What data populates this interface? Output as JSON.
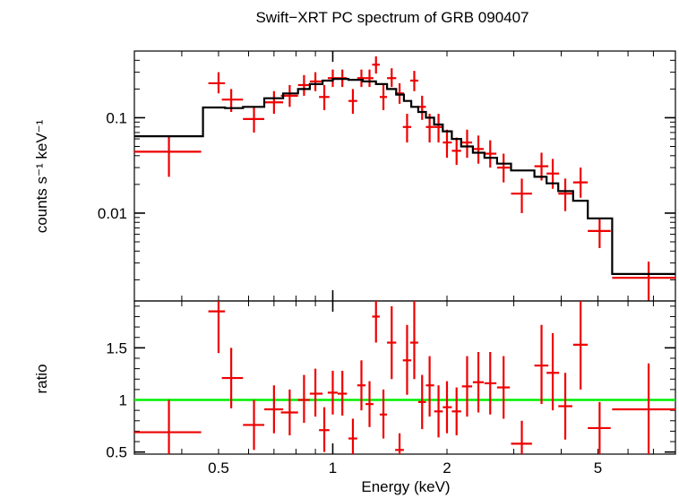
{
  "chart_data": [
    {
      "type": "scatter",
      "title": "Swift−XRT PC spectrum of GRB 090407",
      "ylabel": "counts s⁻¹ keV⁻¹",
      "xlabel": "",
      "xscale": "log",
      "yscale": "log",
      "xlim": [
        0.3,
        8.0
      ],
      "ylim": [
        0.0012,
        0.5
      ],
      "xticks_labeled": [],
      "yticks_labeled": [
        {
          "value": 0.1,
          "label": "0.1"
        },
        {
          "value": 0.01,
          "label": "0.01"
        }
      ],
      "series": [
        {
          "style": "crosses",
          "color": "#ee0000",
          "points": [
            {
              "x": 0.37,
              "xlo": 0.3,
              "xhi": 0.45,
              "y": 0.044,
              "ylo": 0.024,
              "yhi": 0.065
            },
            {
              "x": 0.5,
              "xlo": 0.47,
              "xhi": 0.52,
              "y": 0.23,
              "ylo": 0.18,
              "yhi": 0.3
            },
            {
              "x": 0.54,
              "xlo": 0.51,
              "xhi": 0.58,
              "y": 0.155,
              "ylo": 0.115,
              "yhi": 0.2
            },
            {
              "x": 0.62,
              "xlo": 0.58,
              "xhi": 0.66,
              "y": 0.097,
              "ylo": 0.07,
              "yhi": 0.13
            },
            {
              "x": 0.7,
              "xlo": 0.66,
              "xhi": 0.74,
              "y": 0.145,
              "ylo": 0.11,
              "yhi": 0.19
            },
            {
              "x": 0.77,
              "xlo": 0.73,
              "xhi": 0.81,
              "y": 0.17,
              "ylo": 0.13,
              "yhi": 0.22
            },
            {
              "x": 0.84,
              "xlo": 0.81,
              "xhi": 0.87,
              "y": 0.22,
              "ylo": 0.17,
              "yhi": 0.28
            },
            {
              "x": 0.9,
              "xlo": 0.87,
              "xhi": 0.94,
              "y": 0.24,
              "ylo": 0.19,
              "yhi": 0.3
            },
            {
              "x": 0.95,
              "xlo": 0.92,
              "xhi": 0.98,
              "y": 0.165,
              "ylo": 0.12,
              "yhi": 0.22
            },
            {
              "x": 1.0,
              "xlo": 0.97,
              "xhi": 1.03,
              "y": 0.26,
              "ylo": 0.21,
              "yhi": 0.32
            },
            {
              "x": 1.06,
              "xlo": 1.03,
              "xhi": 1.09,
              "y": 0.26,
              "ylo": 0.21,
              "yhi": 0.32
            },
            {
              "x": 1.13,
              "xlo": 1.1,
              "xhi": 1.16,
              "y": 0.15,
              "ylo": 0.11,
              "yhi": 0.2
            },
            {
              "x": 1.19,
              "xlo": 1.16,
              "xhi": 1.22,
              "y": 0.26,
              "ylo": 0.21,
              "yhi": 0.32
            },
            {
              "x": 1.25,
              "xlo": 1.22,
              "xhi": 1.28,
              "y": 0.26,
              "ylo": 0.21,
              "yhi": 0.32
            },
            {
              "x": 1.3,
              "xlo": 1.27,
              "xhi": 1.33,
              "y": 0.36,
              "ylo": 0.29,
              "yhi": 0.44
            },
            {
              "x": 1.36,
              "xlo": 1.33,
              "xhi": 1.39,
              "y": 0.165,
              "ylo": 0.12,
              "yhi": 0.22
            },
            {
              "x": 1.43,
              "xlo": 1.39,
              "xhi": 1.47,
              "y": 0.26,
              "ylo": 0.21,
              "yhi": 0.33
            },
            {
              "x": 1.5,
              "xlo": 1.46,
              "xhi": 1.54,
              "y": 0.18,
              "ylo": 0.14,
              "yhi": 0.23
            },
            {
              "x": 1.57,
              "xlo": 1.53,
              "xhi": 1.61,
              "y": 0.08,
              "ylo": 0.055,
              "yhi": 0.11
            },
            {
              "x": 1.64,
              "xlo": 1.6,
              "xhi": 1.68,
              "y": 0.245,
              "ylo": 0.19,
              "yhi": 0.31
            },
            {
              "x": 1.72,
              "xlo": 1.68,
              "xhi": 1.76,
              "y": 0.13,
              "ylo": 0.095,
              "yhi": 0.17
            },
            {
              "x": 1.8,
              "xlo": 1.76,
              "xhi": 1.85,
              "y": 0.08,
              "ylo": 0.055,
              "yhi": 0.11
            },
            {
              "x": 1.9,
              "xlo": 1.85,
              "xhi": 1.95,
              "y": 0.08,
              "ylo": 0.055,
              "yhi": 0.11
            },
            {
              "x": 2.0,
              "xlo": 1.95,
              "xhi": 2.06,
              "y": 0.055,
              "ylo": 0.038,
              "yhi": 0.075
            },
            {
              "x": 2.12,
              "xlo": 2.06,
              "xhi": 2.18,
              "y": 0.045,
              "ylo": 0.032,
              "yhi": 0.062
            },
            {
              "x": 2.26,
              "xlo": 2.19,
              "xhi": 2.33,
              "y": 0.055,
              "ylo": 0.038,
              "yhi": 0.075
            },
            {
              "x": 2.42,
              "xlo": 2.34,
              "xhi": 2.5,
              "y": 0.047,
              "ylo": 0.033,
              "yhi": 0.065
            },
            {
              "x": 2.6,
              "xlo": 2.51,
              "xhi": 2.7,
              "y": 0.042,
              "ylo": 0.03,
              "yhi": 0.058
            },
            {
              "x": 2.82,
              "xlo": 2.71,
              "xhi": 2.93,
              "y": 0.03,
              "ylo": 0.021,
              "yhi": 0.042
            },
            {
              "x": 3.15,
              "xlo": 2.95,
              "xhi": 3.35,
              "y": 0.016,
              "ylo": 0.01,
              "yhi": 0.023
            },
            {
              "x": 3.55,
              "xlo": 3.4,
              "xhi": 3.7,
              "y": 0.031,
              "ylo": 0.022,
              "yhi": 0.043
            },
            {
              "x": 3.8,
              "xlo": 3.66,
              "xhi": 3.95,
              "y": 0.026,
              "ylo": 0.018,
              "yhi": 0.037
            },
            {
              "x": 4.1,
              "xlo": 3.93,
              "xhi": 4.28,
              "y": 0.016,
              "ylo": 0.0105,
              "yhi": 0.023
            },
            {
              "x": 4.5,
              "xlo": 4.3,
              "xhi": 4.7,
              "y": 0.021,
              "ylo": 0.0145,
              "yhi": 0.03
            },
            {
              "x": 5.05,
              "xlo": 4.7,
              "xhi": 5.4,
              "y": 0.0065,
              "ylo": 0.0043,
              "yhi": 0.0088
            },
            {
              "x": 6.8,
              "xlo": 5.45,
              "xhi": 8.0,
              "y": 0.0021,
              "ylo": 0.0012,
              "yhi": 0.0031
            }
          ]
        },
        {
          "style": "step",
          "color": "#000000",
          "steps": [
            {
              "x0": 0.3,
              "x1": 0.455,
              "y": 0.064
            },
            {
              "x0": 0.455,
              "x1": 0.52,
              "y": 0.128
            },
            {
              "x0": 0.52,
              "x1": 0.58,
              "y": 0.126
            },
            {
              "x0": 0.58,
              "x1": 0.66,
              "y": 0.13
            },
            {
              "x0": 0.66,
              "x1": 0.74,
              "y": 0.16
            },
            {
              "x0": 0.74,
              "x1": 0.81,
              "y": 0.18
            },
            {
              "x0": 0.81,
              "x1": 0.87,
              "y": 0.2
            },
            {
              "x0": 0.87,
              "x1": 0.94,
              "y": 0.225
            },
            {
              "x0": 0.94,
              "x1": 1.0,
              "y": 0.245
            },
            {
              "x0": 1.0,
              "x1": 1.1,
              "y": 0.255
            },
            {
              "x0": 1.1,
              "x1": 1.2,
              "y": 0.25
            },
            {
              "x0": 1.2,
              "x1": 1.3,
              "y": 0.24
            },
            {
              "x0": 1.3,
              "x1": 1.39,
              "y": 0.225
            },
            {
              "x0": 1.39,
              "x1": 1.47,
              "y": 0.2
            },
            {
              "x0": 1.47,
              "x1": 1.54,
              "y": 0.175
            },
            {
              "x0": 1.54,
              "x1": 1.61,
              "y": 0.15
            },
            {
              "x0": 1.61,
              "x1": 1.68,
              "y": 0.13
            },
            {
              "x0": 1.68,
              "x1": 1.76,
              "y": 0.115
            },
            {
              "x0": 1.76,
              "x1": 1.85,
              "y": 0.1
            },
            {
              "x0": 1.85,
              "x1": 1.95,
              "y": 0.085
            },
            {
              "x0": 1.95,
              "x1": 2.06,
              "y": 0.072
            },
            {
              "x0": 2.06,
              "x1": 2.18,
              "y": 0.06
            },
            {
              "x0": 2.18,
              "x1": 2.34,
              "y": 0.05
            },
            {
              "x0": 2.34,
              "x1": 2.51,
              "y": 0.043
            },
            {
              "x0": 2.51,
              "x1": 2.71,
              "y": 0.038
            },
            {
              "x0": 2.71,
              "x1": 2.95,
              "y": 0.033
            },
            {
              "x0": 2.95,
              "x1": 3.4,
              "y": 0.028
            },
            {
              "x0": 3.4,
              "x1": 3.66,
              "y": 0.024
            },
            {
              "x0": 3.66,
              "x1": 3.93,
              "y": 0.0205
            },
            {
              "x0": 3.93,
              "x1": 4.3,
              "y": 0.017
            },
            {
              "x0": 4.3,
              "x1": 4.7,
              "y": 0.0135
            },
            {
              "x0": 4.7,
              "x1": 5.45,
              "y": 0.0088
            },
            {
              "x0": 5.45,
              "x1": 8.0,
              "y": 0.0023
            }
          ]
        }
      ]
    },
    {
      "type": "scatter",
      "title": "",
      "ylabel": "ratio",
      "xlabel": "Energy (keV)",
      "xscale": "log",
      "yscale": "linear",
      "xlim": [
        0.3,
        8.0
      ],
      "ylim": [
        0.48,
        1.95
      ],
      "xticks_labeled": [
        {
          "value": 0.5,
          "label": "0.5"
        },
        {
          "value": 1,
          "label": "1"
        },
        {
          "value": 2,
          "label": "2"
        },
        {
          "value": 5,
          "label": "5"
        }
      ],
      "yticks_labeled": [
        {
          "value": 0.5,
          "label": "0.5"
        },
        {
          "value": 1,
          "label": "1"
        },
        {
          "value": 1.5,
          "label": "1.5"
        }
      ],
      "reference_line": {
        "y": 1.0,
        "color": "#00ee00"
      },
      "series": [
        {
          "style": "crosses",
          "color": "#ee0000",
          "points": [
            {
              "x": 0.37,
              "xlo": 0.3,
              "xhi": 0.45,
              "y": 0.69,
              "ylo": 0.38,
              "yhi": 1.0
            },
            {
              "x": 0.5,
              "xlo": 0.47,
              "xhi": 0.52,
              "y": 1.85,
              "ylo": 1.45,
              "yhi": 1.95
            },
            {
              "x": 0.54,
              "xlo": 0.51,
              "xhi": 0.58,
              "y": 1.21,
              "ylo": 0.92,
              "yhi": 1.5
            },
            {
              "x": 0.62,
              "xlo": 0.58,
              "xhi": 0.66,
              "y": 0.76,
              "ylo": 0.52,
              "yhi": 1.0
            },
            {
              "x": 0.7,
              "xlo": 0.66,
              "xhi": 0.74,
              "y": 0.91,
              "ylo": 0.68,
              "yhi": 1.14
            },
            {
              "x": 0.77,
              "xlo": 0.73,
              "xhi": 0.81,
              "y": 0.88,
              "ylo": 0.66,
              "yhi": 1.1
            },
            {
              "x": 0.84,
              "xlo": 0.81,
              "xhi": 0.87,
              "y": 1.0,
              "ylo": 0.78,
              "yhi": 1.24
            },
            {
              "x": 0.9,
              "xlo": 0.87,
              "xhi": 0.94,
              "y": 1.06,
              "ylo": 0.84,
              "yhi": 1.3
            },
            {
              "x": 0.95,
              "xlo": 0.92,
              "xhi": 0.98,
              "y": 0.71,
              "ylo": 0.5,
              "yhi": 0.93
            },
            {
              "x": 1.0,
              "xlo": 0.97,
              "xhi": 1.03,
              "y": 1.07,
              "ylo": 0.86,
              "yhi": 1.28
            },
            {
              "x": 1.06,
              "xlo": 1.03,
              "xhi": 1.09,
              "y": 1.06,
              "ylo": 0.85,
              "yhi": 1.28
            },
            {
              "x": 1.13,
              "xlo": 1.1,
              "xhi": 1.16,
              "y": 0.63,
              "ylo": 0.44,
              "yhi": 0.82
            },
            {
              "x": 1.19,
              "xlo": 1.16,
              "xhi": 1.22,
              "y": 1.14,
              "ylo": 0.9,
              "yhi": 1.38
            },
            {
              "x": 1.25,
              "xlo": 1.22,
              "xhi": 1.28,
              "y": 0.96,
              "ylo": 0.74,
              "yhi": 1.18
            },
            {
              "x": 1.3,
              "xlo": 1.27,
              "xhi": 1.33,
              "y": 1.8,
              "ylo": 1.55,
              "yhi": 1.95
            },
            {
              "x": 1.36,
              "xlo": 1.33,
              "xhi": 1.39,
              "y": 0.86,
              "ylo": 0.63,
              "yhi": 1.1
            },
            {
              "x": 1.43,
              "xlo": 1.39,
              "xhi": 1.47,
              "y": 1.55,
              "ylo": 1.2,
              "yhi": 1.9
            },
            {
              "x": 1.5,
              "xlo": 1.46,
              "xhi": 1.54,
              "y": 0.52,
              "ylo": 0.38,
              "yhi": 0.68
            },
            {
              "x": 1.57,
              "xlo": 1.53,
              "xhi": 1.61,
              "y": 1.38,
              "ylo": 1.05,
              "yhi": 1.72
            },
            {
              "x": 1.64,
              "xlo": 1.6,
              "xhi": 1.68,
              "y": 1.55,
              "ylo": 1.2,
              "yhi": 1.95
            },
            {
              "x": 1.72,
              "xlo": 1.68,
              "xhi": 1.76,
              "y": 0.98,
              "ylo": 0.72,
              "yhi": 1.24
            },
            {
              "x": 1.8,
              "xlo": 1.76,
              "xhi": 1.85,
              "y": 1.14,
              "ylo": 0.84,
              "yhi": 1.42
            },
            {
              "x": 1.9,
              "xlo": 1.85,
              "xhi": 1.95,
              "y": 0.89,
              "ylo": 0.64,
              "yhi": 1.14
            },
            {
              "x": 2.0,
              "xlo": 1.95,
              "xhi": 2.06,
              "y": 0.93,
              "ylo": 0.68,
              "yhi": 1.18
            },
            {
              "x": 2.12,
              "xlo": 2.06,
              "xhi": 2.18,
              "y": 0.89,
              "ylo": 0.66,
              "yhi": 1.12
            },
            {
              "x": 2.26,
              "xlo": 2.19,
              "xhi": 2.33,
              "y": 1.13,
              "ylo": 0.84,
              "yhi": 1.42
            },
            {
              "x": 2.42,
              "xlo": 2.34,
              "xhi": 2.5,
              "y": 1.17,
              "ylo": 0.88,
              "yhi": 1.46
            },
            {
              "x": 2.6,
              "xlo": 2.51,
              "xhi": 2.7,
              "y": 1.16,
              "ylo": 0.86,
              "yhi": 1.46
            },
            {
              "x": 2.82,
              "xlo": 2.71,
              "xhi": 2.93,
              "y": 1.12,
              "ylo": 0.82,
              "yhi": 1.42
            },
            {
              "x": 3.15,
              "xlo": 2.95,
              "xhi": 3.35,
              "y": 0.58,
              "ylo": 0.38,
              "yhi": 0.8
            },
            {
              "x": 3.55,
              "xlo": 3.4,
              "xhi": 3.7,
              "y": 1.33,
              "ylo": 0.96,
              "yhi": 1.72
            },
            {
              "x": 3.8,
              "xlo": 3.66,
              "xhi": 3.95,
              "y": 1.26,
              "ylo": 0.9,
              "yhi": 1.64
            },
            {
              "x": 4.1,
              "xlo": 3.93,
              "xhi": 4.28,
              "y": 0.94,
              "ylo": 0.62,
              "yhi": 1.26
            },
            {
              "x": 4.5,
              "xlo": 4.3,
              "xhi": 4.7,
              "y": 1.53,
              "ylo": 1.1,
              "yhi": 1.95
            },
            {
              "x": 5.05,
              "xlo": 4.7,
              "xhi": 5.4,
              "y": 0.73,
              "ylo": 0.48,
              "yhi": 0.98
            },
            {
              "x": 6.8,
              "xlo": 5.45,
              "xhi": 8.0,
              "y": 0.91,
              "ylo": 0.48,
              "yhi": 1.35
            }
          ]
        }
      ]
    }
  ]
}
